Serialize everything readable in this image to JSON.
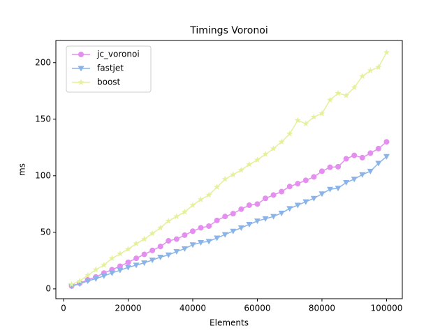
{
  "chart_data": {
    "type": "line",
    "title": "Timings Voronoi",
    "xlabel": "Elements",
    "ylabel": "ms",
    "x": [
      2500,
      5000,
      7500,
      10000,
      12500,
      15000,
      17500,
      20000,
      22500,
      25000,
      27500,
      30000,
      32500,
      35000,
      37500,
      40000,
      42500,
      45000,
      47500,
      50000,
      52500,
      55000,
      57500,
      60000,
      62500,
      65000,
      67500,
      70000,
      72500,
      75000,
      77500,
      80000,
      82500,
      85000,
      87500,
      90000,
      92500,
      95000,
      97500,
      100000
    ],
    "series": [
      {
        "name": "jc_voronoi",
        "color": "#e48ef0",
        "marker": "circle",
        "values": [
          2.5,
          5,
          8,
          10.5,
          14,
          17,
          20,
          23.5,
          27,
          30.5,
          34,
          37.5,
          42.5,
          44,
          47.5,
          51,
          54,
          55.5,
          60.5,
          64,
          66.5,
          70.5,
          74,
          75,
          80,
          83,
          86,
          90.5,
          93,
          96,
          99,
          104,
          107.5,
          108,
          115,
          118,
          116,
          120,
          124,
          130
        ]
      },
      {
        "name": "fastjet",
        "color": "#8ab4e8",
        "marker": "triangle-down",
        "values": [
          2.5,
          4.5,
          7,
          9,
          11.5,
          14,
          16.5,
          19,
          21,
          23,
          25.5,
          28,
          30,
          33,
          35.5,
          39,
          41,
          42,
          45,
          48,
          51,
          54,
          57,
          60,
          62,
          64,
          67,
          71,
          74,
          77,
          80,
          84,
          88,
          89,
          94,
          97,
          101,
          104,
          111,
          117
        ]
      },
      {
        "name": "boost",
        "color": "#e6f09a",
        "marker": "star",
        "values": [
          4,
          7,
          12,
          17,
          21,
          27,
          31,
          35,
          40,
          44,
          49,
          54,
          60,
          64,
          68,
          74,
          79,
          83,
          90,
          97,
          101,
          105,
          110,
          114,
          119,
          124,
          130,
          137,
          149,
          146,
          152,
          155,
          167,
          173,
          171,
          178,
          188,
          193,
          196,
          209
        ]
      }
    ],
    "xlim": [
      -2375,
      104875
    ],
    "ylim": [
      -8.7,
      219.6
    ],
    "xticks": [
      0,
      20000,
      40000,
      60000,
      80000,
      100000
    ],
    "yticks": [
      0,
      50,
      100,
      150,
      200
    ],
    "legend": "upper left"
  }
}
